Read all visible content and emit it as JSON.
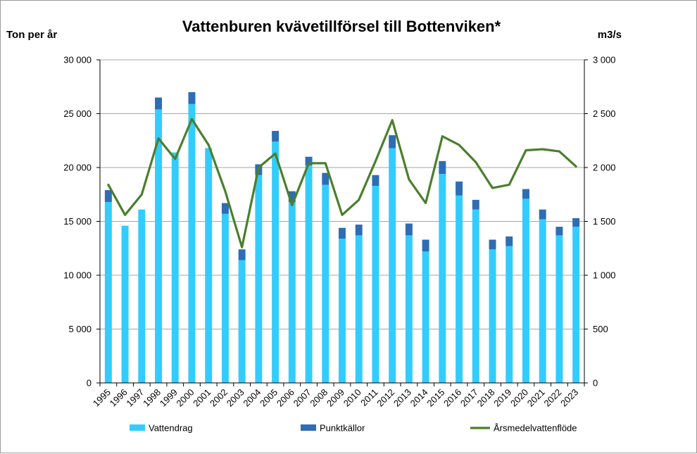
{
  "chart_data": {
    "type": "bar",
    "title": "Vattenburen kvävetillförsel till Bottenviken*",
    "ylabel_left": "Ton per år",
    "ylabel_right": "m3/s",
    "categories": [
      "1995",
      "1996",
      "1997",
      "1998",
      "1999",
      "2000",
      "2001",
      "2002",
      "2003",
      "2004",
      "2005",
      "2006",
      "2007",
      "2008",
      "2009",
      "2010",
      "2011",
      "2012",
      "2013",
      "2014",
      "2015",
      "2016",
      "2017",
      "2018",
      "2019",
      "2020",
      "2021",
      "2022",
      "2023"
    ],
    "stacked": true,
    "series": [
      {
        "name": "Vattendrag",
        "type": "bar",
        "axis": "left",
        "color": "#33CCFF",
        "values": [
          16800,
          14600,
          16100,
          25400,
          21400,
          25900,
          21800,
          15700,
          11400,
          19300,
          22400,
          16800,
          20200,
          18400,
          13400,
          13700,
          18300,
          21800,
          13700,
          12200,
          19400,
          17400,
          16100,
          12400,
          12700,
          17100,
          15200,
          13700,
          14500
        ]
      },
      {
        "name": "Punktkällor",
        "type": "bar",
        "axis": "left",
        "color": "#2E6DB4",
        "values": [
          1100,
          0,
          0,
          1100,
          0,
          1100,
          0,
          1000,
          1000,
          1000,
          1000,
          1000,
          800,
          1100,
          1000,
          1000,
          1000,
          1200,
          1100,
          1100,
          1200,
          1300,
          900,
          900,
          900,
          900,
          900,
          800,
          800
        ]
      },
      {
        "name": "Årsmedelvattenflöde",
        "type": "line",
        "axis": "right",
        "color": "#4A7F2C",
        "values": [
          1840,
          1560,
          1750,
          2270,
          2080,
          2450,
          2210,
          1780,
          1260,
          2000,
          2130,
          1650,
          2040,
          2040,
          1560,
          1700,
          2060,
          2440,
          1890,
          1670,
          2290,
          2210,
          2050,
          1810,
          1840,
          2160,
          2170,
          2150,
          2010
        ]
      }
    ],
    "yleft": {
      "min": 0,
      "max": 30000,
      "ticks": [
        0,
        5000,
        10000,
        15000,
        20000,
        25000,
        30000
      ],
      "tick_labels": [
        "0",
        "5 000",
        "10 000",
        "15 000",
        "20 000",
        "25 000",
        "30 000"
      ]
    },
    "yright": {
      "min": 0,
      "max": 3000,
      "ticks": [
        0,
        500,
        1000,
        1500,
        2000,
        2500,
        3000
      ],
      "tick_labels": [
        "0",
        "500",
        "1 000",
        "1 500",
        "2 000",
        "2 500",
        "3 000"
      ]
    },
    "grid": true,
    "legend_position": "bottom"
  }
}
